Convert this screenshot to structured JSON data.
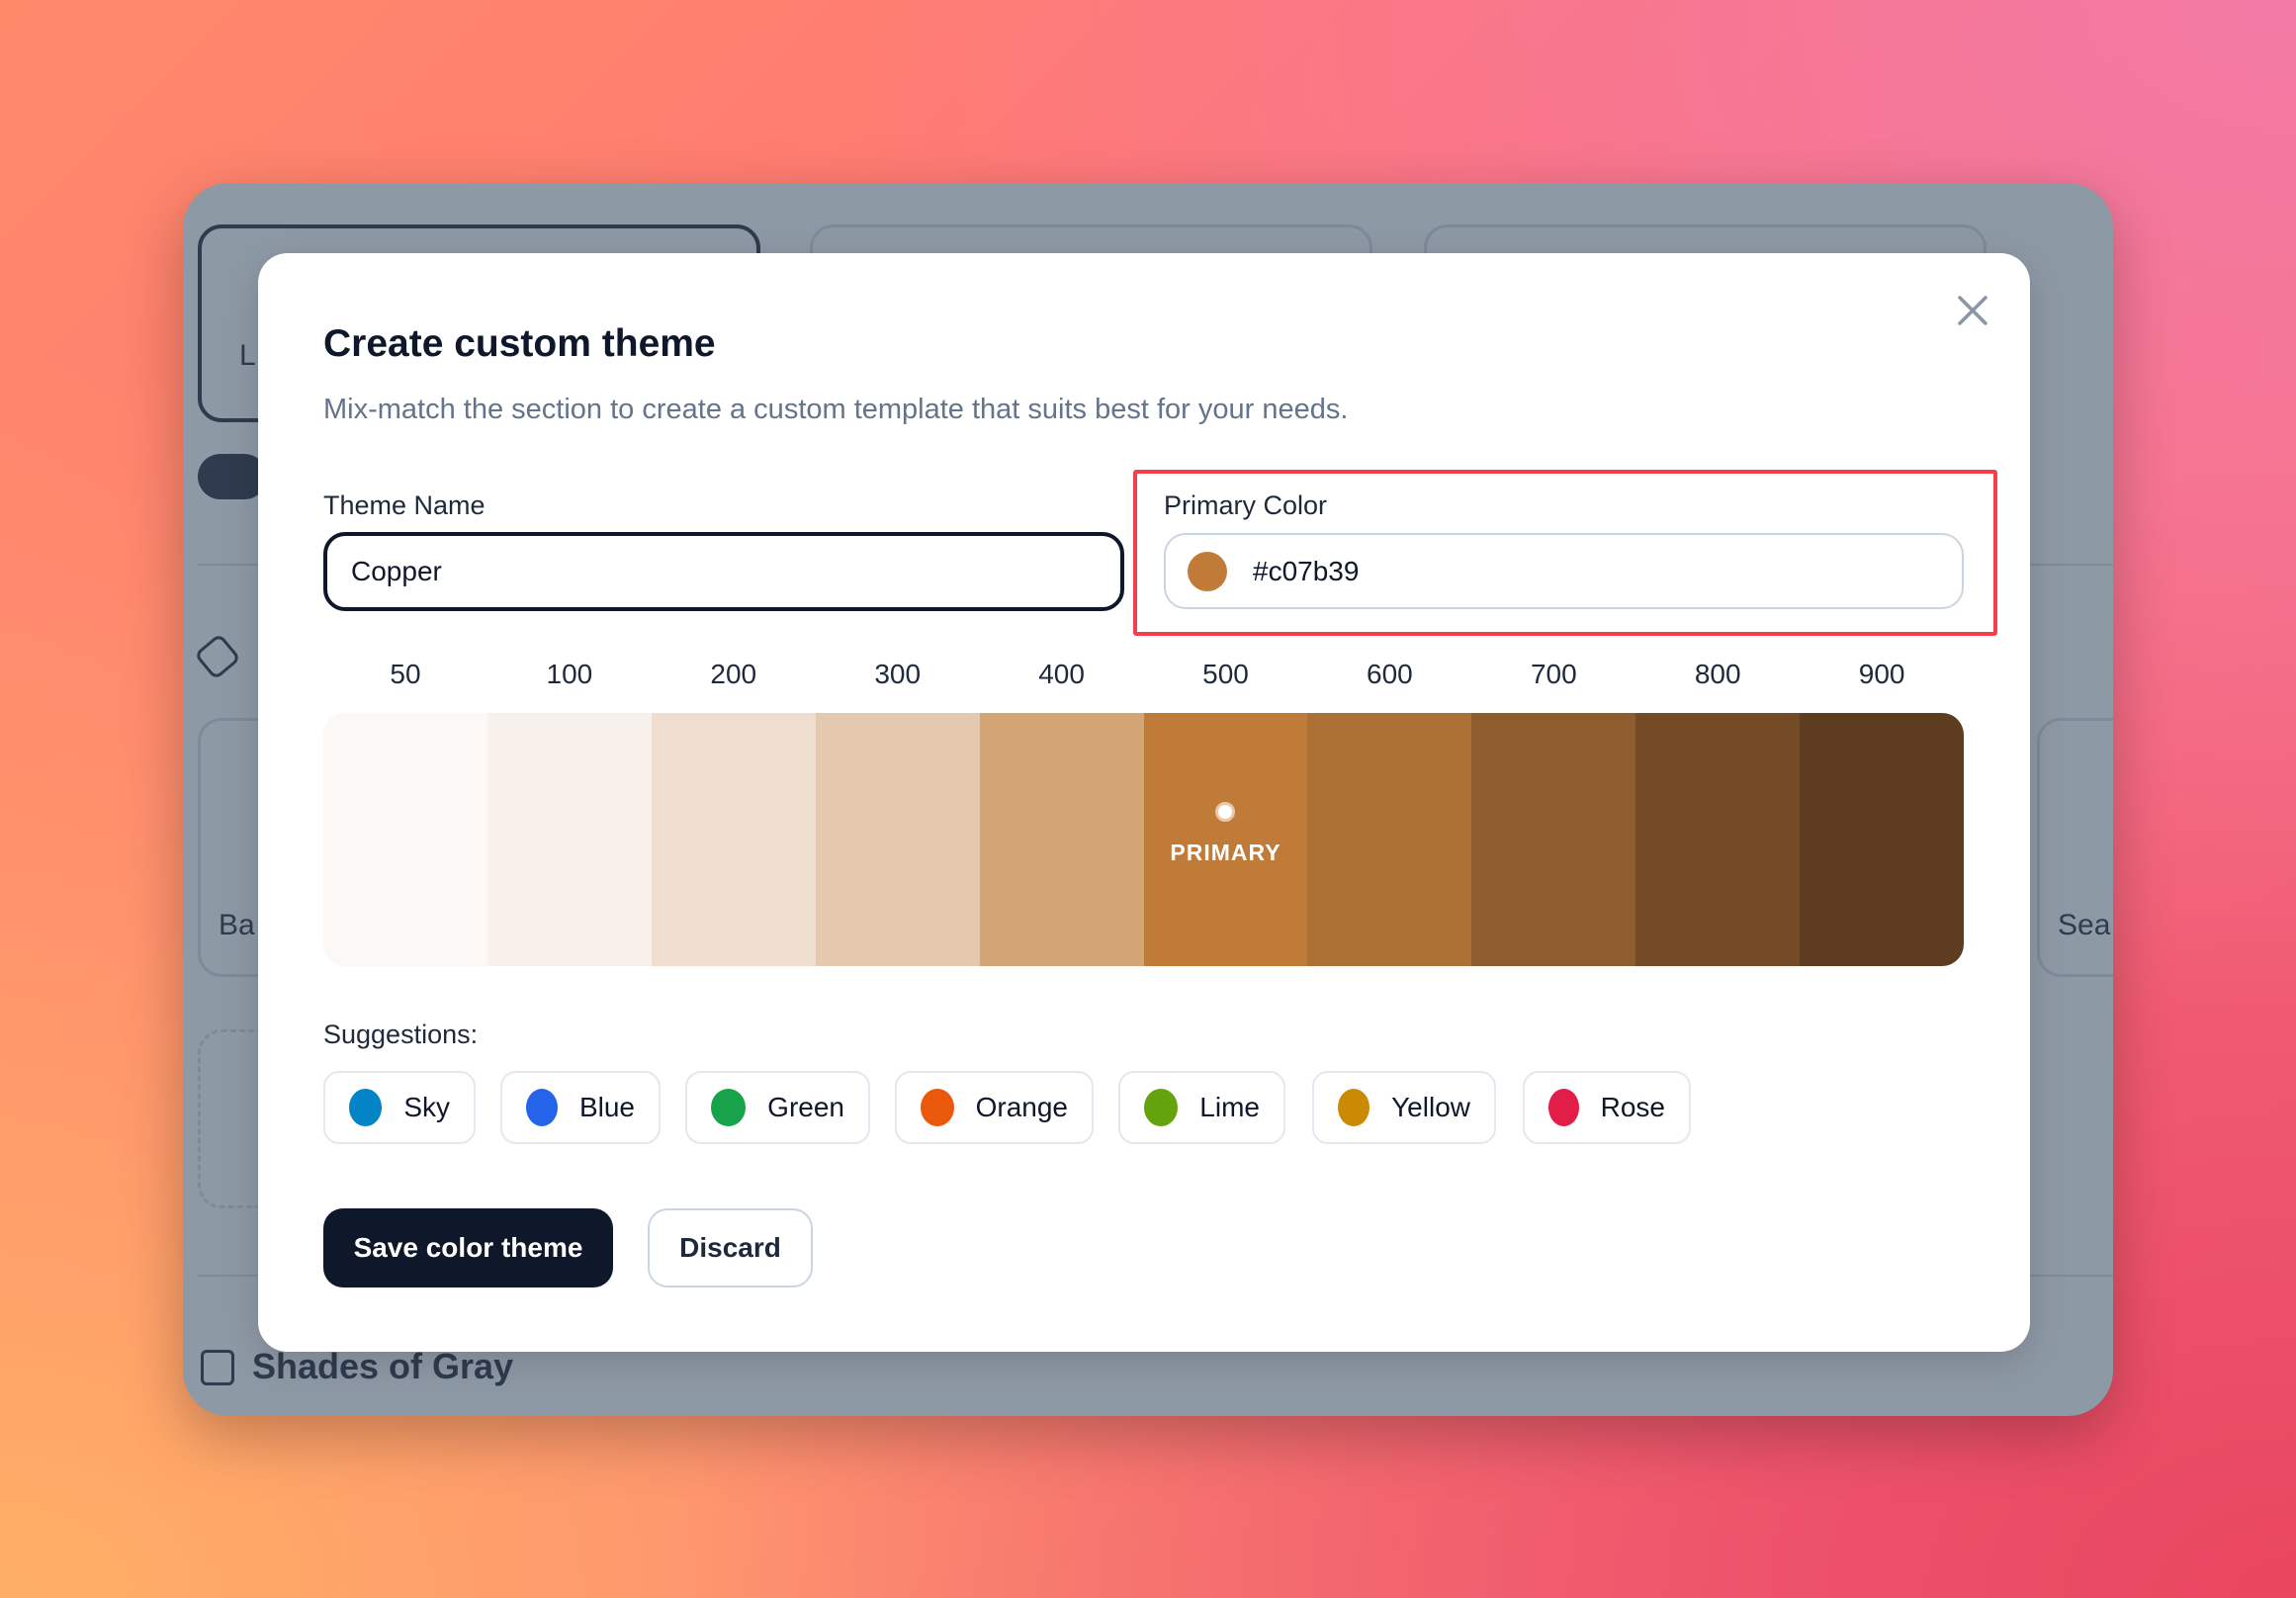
{
  "background": {
    "cards": [
      "L",
      "Ba",
      "Sea"
    ],
    "section_title": "Shades of Gray"
  },
  "modal": {
    "title": "Create custom theme",
    "subtitle": "Mix-match the section to create a custom template that suits best for your needs.",
    "theme_name": {
      "label": "Theme Name",
      "value": "Copper"
    },
    "primary_color": {
      "label": "Primary Color",
      "value": "#c07b39",
      "swatch": "#c07b39"
    },
    "palette": {
      "shades": [
        {
          "label": "50",
          "color": "#fcf8f5"
        },
        {
          "label": "100",
          "color": "#f8f0ea"
        },
        {
          "label": "200",
          "color": "#efddcd"
        },
        {
          "label": "300",
          "color": "#e4c9ae"
        },
        {
          "label": "400",
          "color": "#d4a574"
        },
        {
          "label": "500",
          "color": "#c07b39"
        },
        {
          "label": "600",
          "color": "#ad7034"
        },
        {
          "label": "700",
          "color": "#8f5c2d"
        },
        {
          "label": "800",
          "color": "#744b24"
        },
        {
          "label": "900",
          "color": "#5e3c1f"
        }
      ],
      "primary_badge": "PRIMARY"
    },
    "suggestions": {
      "label": "Suggestions:",
      "items": [
        {
          "label": "Sky",
          "color": "#0284c7"
        },
        {
          "label": "Blue",
          "color": "#2563eb"
        },
        {
          "label": "Green",
          "color": "#16a34a"
        },
        {
          "label": "Orange",
          "color": "#ea580c"
        },
        {
          "label": "Lime",
          "color": "#65a30d"
        },
        {
          "label": "Yellow",
          "color": "#ca8a04"
        },
        {
          "label": "Rose",
          "color": "#e11d48"
        }
      ]
    },
    "save_label": "Save color theme",
    "discard_label": "Discard",
    "highlight_color": "#f43f4e"
  }
}
